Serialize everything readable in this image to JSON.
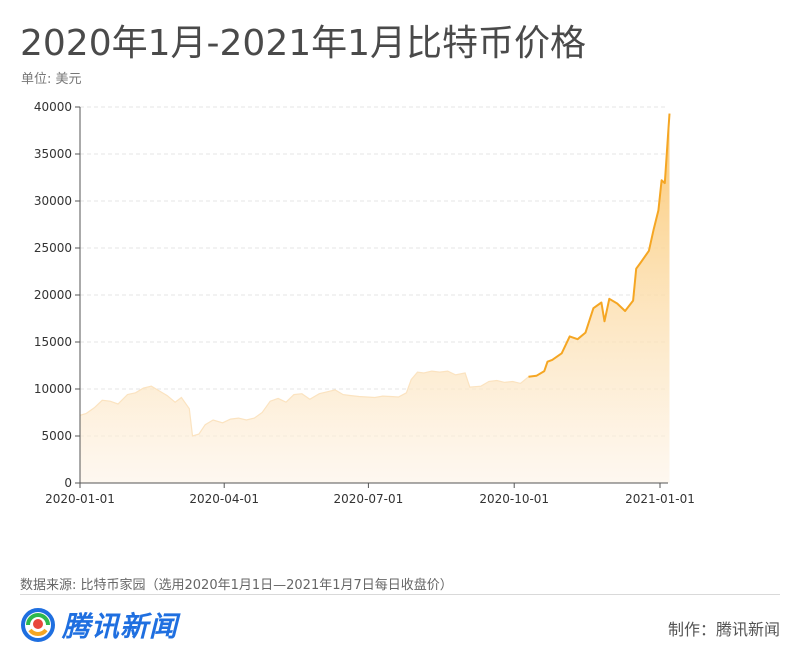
{
  "header": {
    "title": "2020年1月-2021年1月比特币价格",
    "unit": "单位: 美元"
  },
  "footer": {
    "source": "数据来源: 比特币家园（选用2020年1月1日—2021年1月7日每日收盘价）",
    "logo_text": "腾讯新闻",
    "credit": "制作：腾讯新闻"
  },
  "colors": {
    "line": "#f5a623",
    "fill_top": "#fbc56a",
    "fill_bottom": "#fdf3e6",
    "grid": "#e6e6e6"
  },
  "chart_data": {
    "type": "area",
    "title": "2020年1月-2021年1月比特币价格",
    "ylabel": "单位: 美元",
    "ylim": [
      0,
      40000
    ],
    "yticks": [
      0,
      5000,
      10000,
      15000,
      20000,
      25000,
      30000,
      35000,
      40000
    ],
    "xlim": [
      "2020-01-01",
      "2021-01-07"
    ],
    "xticks": [
      "2020-01-01",
      "2020-04-01",
      "2020-07-01",
      "2020-10-01",
      "2021-01-01"
    ],
    "grid": "horizontal-dashed",
    "series": [
      {
        "points": [
          [
            "2020-01-01",
            7200
          ],
          [
            "2020-01-05",
            7400
          ],
          [
            "2020-01-10",
            8000
          ],
          [
            "2020-01-15",
            8800
          ],
          [
            "2020-01-20",
            8700
          ],
          [
            "2020-01-25",
            8400
          ],
          [
            "2020-01-31",
            9400
          ],
          [
            "2020-02-05",
            9600
          ],
          [
            "2020-02-10",
            10100
          ],
          [
            "2020-02-15",
            10300
          ],
          [
            "2020-02-20",
            9800
          ],
          [
            "2020-02-25",
            9300
          ],
          [
            "2020-03-01",
            8600
          ],
          [
            "2020-03-05",
            9100
          ],
          [
            "2020-03-10",
            7900
          ],
          [
            "2020-03-12",
            5000
          ],
          [
            "2020-03-16",
            5200
          ],
          [
            "2020-03-20",
            6200
          ],
          [
            "2020-03-25",
            6700
          ],
          [
            "2020-03-31",
            6400
          ],
          [
            "2020-04-05",
            6800
          ],
          [
            "2020-04-10",
            6900
          ],
          [
            "2020-04-15",
            6700
          ],
          [
            "2020-04-20",
            6900
          ],
          [
            "2020-04-25",
            7500
          ],
          [
            "2020-04-30",
            8700
          ],
          [
            "2020-05-05",
            9000
          ],
          [
            "2020-05-10",
            8600
          ],
          [
            "2020-05-15",
            9400
          ],
          [
            "2020-05-20",
            9500
          ],
          [
            "2020-05-25",
            8900
          ],
          [
            "2020-05-31",
            9500
          ],
          [
            "2020-06-05",
            9700
          ],
          [
            "2020-06-10",
            9900
          ],
          [
            "2020-06-15",
            9400
          ],
          [
            "2020-06-20",
            9300
          ],
          [
            "2020-06-25",
            9200
          ],
          [
            "2020-06-30",
            9150
          ],
          [
            "2020-07-05",
            9100
          ],
          [
            "2020-07-10",
            9250
          ],
          [
            "2020-07-15",
            9200
          ],
          [
            "2020-07-20",
            9150
          ],
          [
            "2020-07-25",
            9600
          ],
          [
            "2020-07-28",
            11000
          ],
          [
            "2020-08-01",
            11800
          ],
          [
            "2020-08-05",
            11700
          ],
          [
            "2020-08-10",
            11900
          ],
          [
            "2020-08-15",
            11800
          ],
          [
            "2020-08-20",
            11900
          ],
          [
            "2020-08-25",
            11500
          ],
          [
            "2020-08-31",
            11700
          ],
          [
            "2020-09-03",
            10200
          ],
          [
            "2020-09-10",
            10300
          ],
          [
            "2020-09-15",
            10800
          ],
          [
            "2020-09-20",
            10900
          ],
          [
            "2020-09-25",
            10700
          ],
          [
            "2020-09-30",
            10800
          ],
          [
            "2020-10-05",
            10600
          ],
          [
            "2020-10-10",
            11300
          ],
          [
            "2020-10-15",
            11400
          ],
          [
            "2020-10-20",
            11900
          ],
          [
            "2020-10-22",
            12900
          ],
          [
            "2020-10-25",
            13100
          ],
          [
            "2020-10-31",
            13800
          ],
          [
            "2020-11-05",
            15600
          ],
          [
            "2020-11-10",
            15300
          ],
          [
            "2020-11-15",
            16000
          ],
          [
            "2020-11-20",
            18600
          ],
          [
            "2020-11-25",
            19200
          ],
          [
            "2020-11-27",
            17200
          ],
          [
            "2020-11-30",
            19600
          ],
          [
            "2020-12-05",
            19100
          ],
          [
            "2020-12-10",
            18300
          ],
          [
            "2020-12-15",
            19400
          ],
          [
            "2020-12-17",
            22800
          ],
          [
            "2020-12-20",
            23500
          ],
          [
            "2020-12-25",
            24700
          ],
          [
            "2020-12-28",
            27000
          ],
          [
            "2020-12-31",
            29000
          ],
          [
            "2021-01-02",
            32200
          ],
          [
            "2021-01-04",
            31900
          ],
          [
            "2021-01-06",
            36800
          ],
          [
            "2021-01-07",
            39300
          ]
        ]
      }
    ]
  }
}
